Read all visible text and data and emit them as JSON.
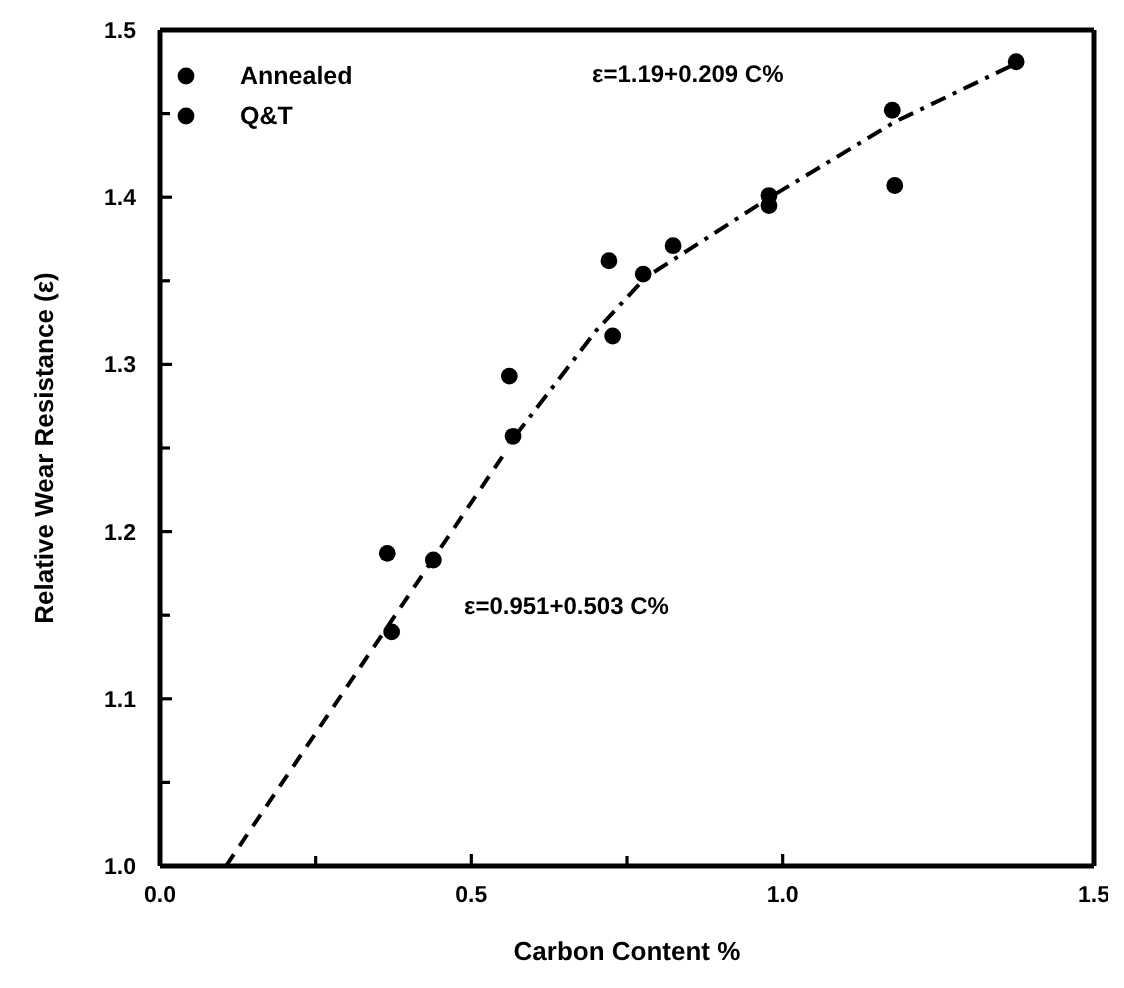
{
  "chart_data": {
    "type": "scatter",
    "xlabel": "Carbon Content %",
    "ylabel": "Relative Wear Resistance (ε)",
    "annotations": [
      "ε=1.19+0.209 C%",
      "ε=0.951+0.503 C%"
    ],
    "xlim": [
      0,
      1.5
    ],
    "xticks": [
      {
        "value": 0,
        "label": "0.0"
      },
      {
        "value": 0.25,
        "label": null
      },
      0.5,
      {
        "value": 0.75,
        "label": null
      },
      {
        "value": 1,
        "label": "1.0"
      },
      1.5
    ],
    "ylim": [
      1,
      1.5
    ],
    "yticks": [
      {
        "value": 1,
        "label": "1.0"
      },
      {
        "value": 1.05,
        "label": null
      },
      1.1,
      {
        "value": 1.15,
        "label": null
      },
      1.2,
      {
        "value": 1.25,
        "label": null
      },
      1.3,
      {
        "value": 1.35,
        "label": null
      },
      1.4,
      {
        "value": 1.45,
        "label": null
      },
      1.5
    ],
    "legend": "top left",
    "marker": "circle",
    "series": [
      {
        "name": "Annealed",
        "color": "#000000",
        "x": [
          0.372,
          0.439,
          0.567,
          0.727,
          0.824,
          0.978,
          1.18
        ],
        "values": [
          1.14,
          1.183,
          1.257,
          1.317,
          1.371,
          1.395,
          1.407
        ]
      },
      {
        "name": "Q&T",
        "color": "#000000",
        "x": [
          0.365,
          0.561,
          0.721,
          0.776,
          0.978,
          1.176,
          1.375
        ],
        "values": [
          1.187,
          1.293,
          1.362,
          1.354,
          1.401,
          1.452,
          1.481
        ]
      },
      {
        "type": "line",
        "color": "#000000",
        "line_style": "dashed",
        "marker": "none",
        "x": [
          0.106,
          0.55
        ],
        "values": [
          1.0,
          1.245
        ]
      },
      {
        "type": "line",
        "color": "#000000",
        "line_style": "dashdot",
        "marker": "none",
        "x": [
          0.57,
          0.7,
          0.78,
          0.98,
          1.18,
          1.375
        ],
        "values": [
          1.257,
          1.32,
          1.352,
          1.4,
          1.445,
          1.48
        ]
      }
    ]
  }
}
